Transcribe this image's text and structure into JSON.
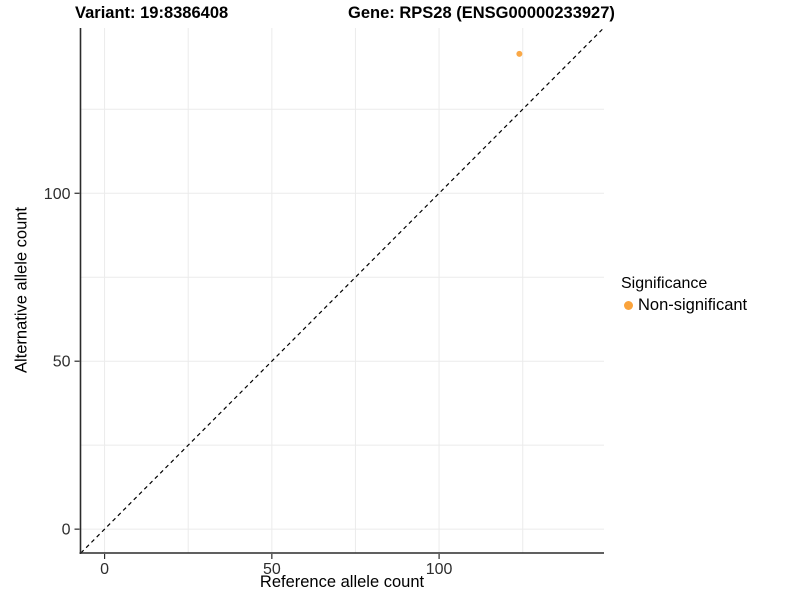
{
  "figure": {
    "titles": {
      "variant": "Variant: 19:8386408",
      "gene": "Gene: RPS28 (ENSG00000233927)"
    },
    "x_axis_label": "Reference allele count",
    "y_axis_label": "Alternative allele count",
    "legend": {
      "title": "Significance",
      "items": [
        {
          "label": "Non-significant",
          "color": "#FAA33C"
        }
      ]
    }
  },
  "chart_data": {
    "type": "scatter",
    "title": "Variant: 19:8386408   Gene: RPS28 (ENSG00000233927)",
    "xlabel": "Reference allele count",
    "ylabel": "Alternative allele count",
    "xlim": [
      -7.2,
      149.3
    ],
    "ylim": [
      -7.1,
      149.2
    ],
    "x_ticks": [
      0,
      50,
      100
    ],
    "y_ticks": [
      0,
      50,
      100
    ],
    "x_minor_ticks": [
      25,
      75,
      125
    ],
    "y_minor_ticks": [
      25,
      75,
      125
    ],
    "grid": "major and minor, light gray",
    "legend_position": "right",
    "series": [
      {
        "name": "Non-significant",
        "color": "#FAA33C",
        "marker": "circle",
        "points": [
          {
            "x": 124,
            "y": 141.5
          }
        ]
      }
    ],
    "reference_line": {
      "type": "identity",
      "equation": "y = x",
      "style": "dashed",
      "color": "#000000"
    }
  },
  "colors": {
    "background": "#FFFFFF",
    "grid_line": "#EBEBEB",
    "axis_line": "#2B2B2B",
    "tick_label": "#2E2E2E",
    "point": "#FAA33C"
  }
}
